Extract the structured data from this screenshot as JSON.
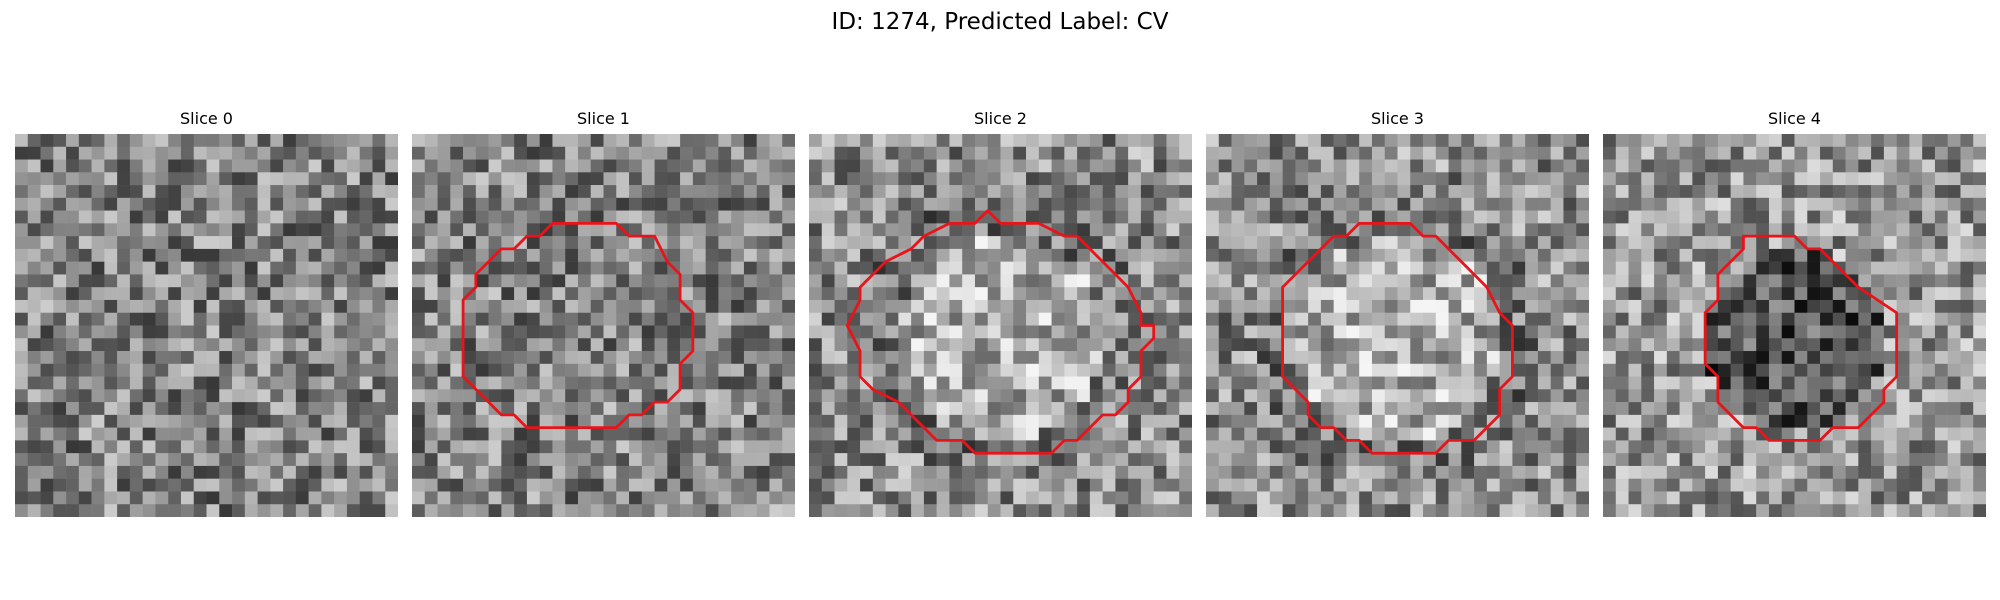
{
  "figure": {
    "title": "ID: 1274, Predicted Label: CV"
  },
  "slices": [
    {
      "title": "Slice 0",
      "contour": false,
      "brightness": "mid",
      "seed": 11
    },
    {
      "title": "Slice 1",
      "contour": true,
      "brightness": "mid",
      "seed": 23
    },
    {
      "title": "Slice 2",
      "contour": true,
      "brightness": "bright-center",
      "seed": 37
    },
    {
      "title": "Slice 3",
      "contour": true,
      "brightness": "bright-center",
      "seed": 41
    },
    {
      "title": "Slice 4",
      "contour": true,
      "brightness": "dark-center",
      "seed": 59
    }
  ],
  "contour_color": "#e8141a",
  "colormap": "gray"
}
